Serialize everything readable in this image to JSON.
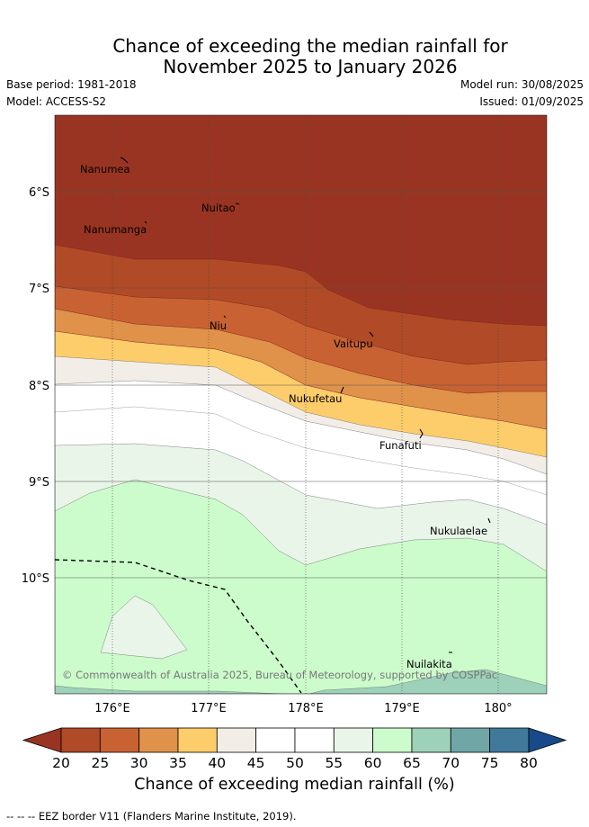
{
  "title_line1": "Chance of exceeding the median rainfall for",
  "title_line2": "November 2025 to January 2026",
  "base_period": "Base period: 1981-2018",
  "model": "Model: ACCESS-S2",
  "model_run": "Model run: 30/08/2025",
  "issued": "Issued: 01/09/2025",
  "copyright": "© Commonwealth of Australia 2025, Bureau of Meteorology, supported by COSPPac",
  "lat_labels": [
    "6°S",
    "7°S",
    "8°S",
    "9°S",
    "10°S"
  ],
  "lon_labels": [
    "176°E",
    "177°E",
    "178°E",
    "179°E",
    "180°"
  ],
  "places": [
    {
      "name": "Nanumea"
    },
    {
      "name": "Nuitao"
    },
    {
      "name": "Nanumanga"
    },
    {
      "name": "Niu"
    },
    {
      "name": "Vaitupu"
    },
    {
      "name": "Nukufetau"
    },
    {
      "name": "Funafuti"
    },
    {
      "name": "Nukulaelae"
    },
    {
      "name": "Nuilakita"
    }
  ],
  "colorbar": {
    "title": "Chance of exceeding median rainfall (%)",
    "ticks": [
      "20",
      "25",
      "30",
      "35",
      "40",
      "45",
      "50",
      "55",
      "60",
      "65",
      "70",
      "75",
      "80"
    ],
    "colors": [
      "#9a3422",
      "#b14a26",
      "#c96232",
      "#e0914a",
      "#fdcd6b",
      "#f2ede7",
      "#ffffff",
      "#ffffff",
      "#e9f5e9",
      "#ccfccc",
      "#9ed1b9",
      "#70a6a6",
      "#41799b",
      "#174a8a"
    ]
  },
  "footnote": "-- -- -- EEZ border V11 (Flanders Marine Institute, 2019)."
}
